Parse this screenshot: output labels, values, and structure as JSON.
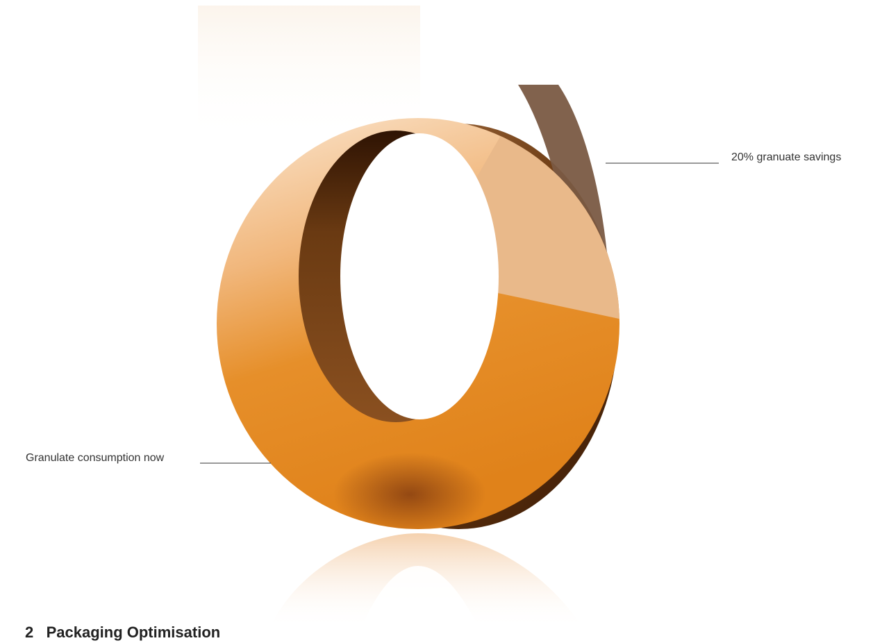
{
  "chart_data": {
    "type": "pie",
    "style": "3d-donut",
    "title": "",
    "slices": [
      {
        "label": "20% granuate savings",
        "value": 20,
        "color": "#e9b98a"
      },
      {
        "label": "Granulate consumption now",
        "value": 80,
        "color": "#e4861c"
      }
    ]
  },
  "labels": {
    "savings": "20% granuate savings",
    "now": "Granulate consumption now"
  },
  "section": {
    "number": "2",
    "title": "Packaging Optimisation"
  },
  "colors": {
    "savings_slice": "#e9b98a",
    "consumption_slice": "#e4861c",
    "rim_dark": "#5a2e0a",
    "rim_savings": "#7a5a43",
    "leader_line": "#333333"
  }
}
